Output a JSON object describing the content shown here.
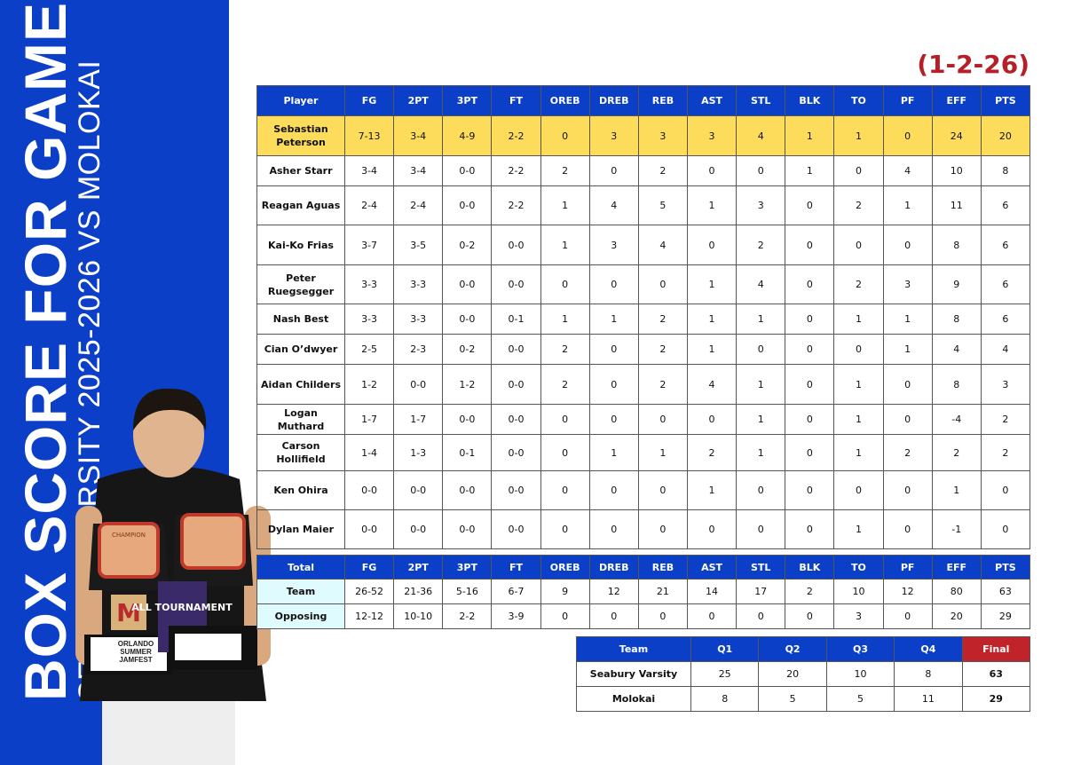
{
  "title": "BOX SCORE FOR GAME",
  "subtitle": "SEABURY VARSITY 2025-2026 VS MOLOKAI",
  "record": "(1-2-26)",
  "colors": {
    "side_blue": "#0b3fc7",
    "header_blue": "#0b3fc7",
    "highlight": "#fddc5c",
    "final_red": "#c1232b",
    "record_red": "#b52028",
    "total_label_bg": "#e0fbfd"
  },
  "photo": {
    "description_icon": "player-with-trophies-photo",
    "trophy_text": [
      "CHAMPION",
      "ALL TOURNAMENT",
      "ORLANDO SUMMER JAMFEST"
    ]
  },
  "box_score": {
    "columns": [
      "Player",
      "FG",
      "2PT",
      "3PT",
      "FT",
      "OREB",
      "DREB",
      "REB",
      "AST",
      "STL",
      "BLK",
      "TO",
      "PF",
      "EFF",
      "PTS"
    ],
    "rows": [
      [
        "Sebastian Peterson",
        "7-13",
        "3-4",
        "4-9",
        "2-2",
        "0",
        "3",
        "3",
        "3",
        "4",
        "1",
        "1",
        "0",
        "24",
        "20"
      ],
      [
        "Asher Starr",
        "3-4",
        "3-4",
        "0-0",
        "2-2",
        "2",
        "0",
        "2",
        "0",
        "0",
        "1",
        "0",
        "4",
        "10",
        "8"
      ],
      [
        "Reagan Aguas",
        "2-4",
        "2-4",
        "0-0",
        "2-2",
        "1",
        "4",
        "5",
        "1",
        "3",
        "0",
        "2",
        "1",
        "11",
        "6"
      ],
      [
        "Kai-Ko Frias",
        "3-7",
        "3-5",
        "0-2",
        "0-0",
        "1",
        "3",
        "4",
        "0",
        "2",
        "0",
        "0",
        "0",
        "8",
        "6"
      ],
      [
        "Peter Ruegsegger",
        "3-3",
        "3-3",
        "0-0",
        "0-0",
        "0",
        "0",
        "0",
        "1",
        "4",
        "0",
        "2",
        "3",
        "9",
        "6"
      ],
      [
        "Nash Best",
        "3-3",
        "3-3",
        "0-0",
        "0-1",
        "1",
        "1",
        "2",
        "1",
        "1",
        "0",
        "1",
        "1",
        "8",
        "6"
      ],
      [
        "Cian O’dwyer",
        "2-5",
        "2-3",
        "0-2",
        "0-0",
        "2",
        "0",
        "2",
        "1",
        "0",
        "0",
        "0",
        "1",
        "4",
        "4"
      ],
      [
        "Aidan Childers",
        "1-2",
        "0-0",
        "1-2",
        "0-0",
        "2",
        "0",
        "2",
        "4",
        "1",
        "0",
        "1",
        "0",
        "8",
        "3"
      ],
      [
        "Logan Muthard",
        "1-7",
        "1-7",
        "0-0",
        "0-0",
        "0",
        "0",
        "0",
        "0",
        "1",
        "0",
        "1",
        "0",
        "-4",
        "2"
      ],
      [
        "Carson Hollifield",
        "1-4",
        "1-3",
        "0-1",
        "0-0",
        "0",
        "1",
        "1",
        "2",
        "1",
        "0",
        "1",
        "2",
        "2",
        "2"
      ],
      [
        "Ken Ohira",
        "0-0",
        "0-0",
        "0-0",
        "0-0",
        "0",
        "0",
        "0",
        "1",
        "0",
        "0",
        "0",
        "0",
        "1",
        "0"
      ],
      [
        "Dylan Maier",
        "0-0",
        "0-0",
        "0-0",
        "0-0",
        "0",
        "0",
        "0",
        "0",
        "0",
        "0",
        "1",
        "0",
        "-1",
        "0"
      ]
    ],
    "highlight_row": 0
  },
  "totals": {
    "columns": [
      "Total",
      "FG",
      "2PT",
      "3PT",
      "FT",
      "OREB",
      "DREB",
      "REB",
      "AST",
      "STL",
      "BLK",
      "TO",
      "PF",
      "EFF",
      "PTS"
    ],
    "rows": [
      [
        "Team",
        "26-52",
        "21-36",
        "5-16",
        "6-7",
        "9",
        "12",
        "21",
        "14",
        "17",
        "2",
        "10",
        "12",
        "80",
        "63"
      ],
      [
        "Opposing",
        "12-12",
        "10-10",
        "2-2",
        "3-9",
        "0",
        "0",
        "0",
        "0",
        "0",
        "0",
        "3",
        "0",
        "20",
        "29"
      ]
    ]
  },
  "quarters": {
    "columns": [
      "Team",
      "Q1",
      "Q2",
      "Q3",
      "Q4",
      "Final"
    ],
    "rows": [
      [
        "Seabury Varsity",
        "25",
        "20",
        "10",
        "8",
        "63"
      ],
      [
        "Molokai",
        "8",
        "5",
        "5",
        "11",
        "29"
      ]
    ]
  }
}
